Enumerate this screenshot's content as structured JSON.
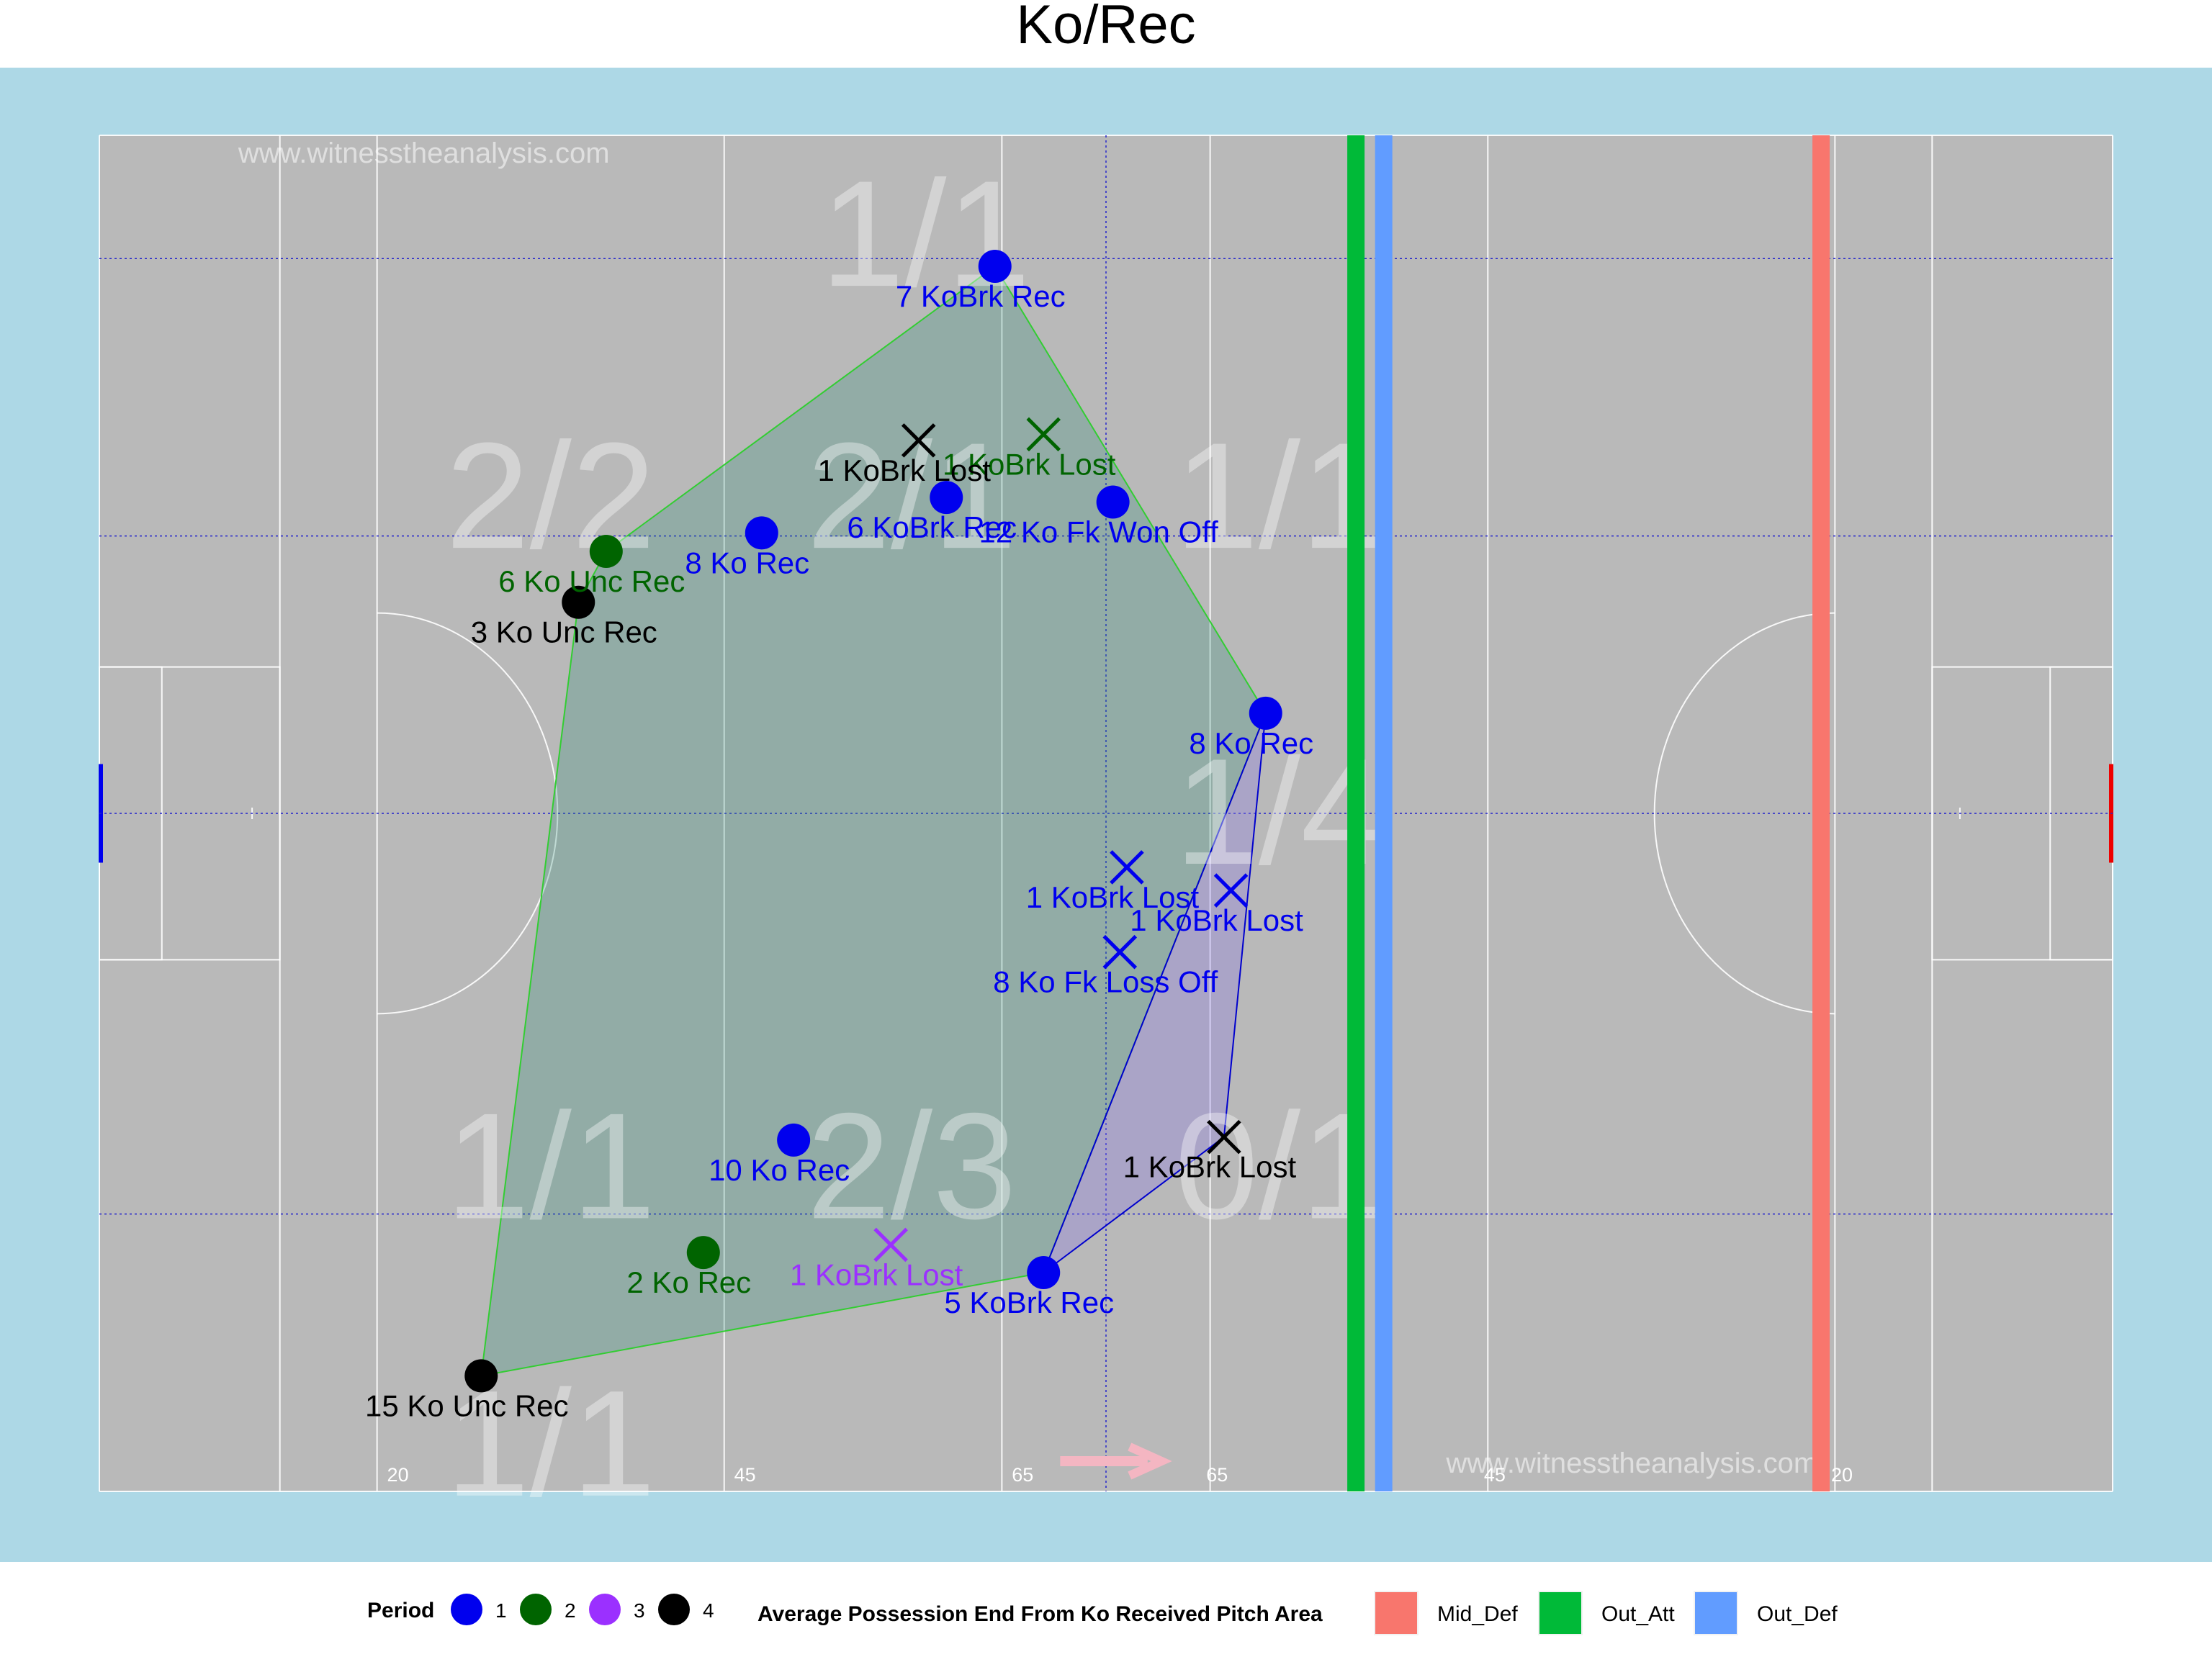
{
  "title": "Ko/Rec",
  "watermark": "www.witnesstheanalysis.com",
  "colors": {
    "outer_bg": "#add8e6",
    "pitch": "#b9b9b9",
    "hull_green": "#32cd32",
    "hull_blue": "#0000cd",
    "period_1": "#0000ee",
    "period_2": "#006400",
    "period_3": "#9b30ff",
    "period_4": "#000000",
    "mid_def": "#f8766d",
    "out_att": "#00ba38",
    "out_def": "#619cff",
    "direction_arrow": "#f4b6c2"
  },
  "chart_data": {
    "type": "scatter",
    "title": "Ko/Rec",
    "xlim": [
      0,
      145
    ],
    "ylim": [
      0,
      88
    ],
    "pitch_markings": {
      "distance_labels": [
        {
          "x": 21.5,
          "label": "20"
        },
        {
          "x": 46.5,
          "label": "45"
        },
        {
          "x": 66.5,
          "label": "65"
        },
        {
          "x": 80.5,
          "label": "65"
        },
        {
          "x": 100.5,
          "label": "45"
        },
        {
          "x": 125.5,
          "label": "20"
        }
      ],
      "grid_x": [
        72.5
      ],
      "grid_y": [
        18,
        44,
        62,
        80
      ]
    },
    "zone_labels": [
      {
        "x": 32.5,
        "y": 64.5,
        "label": "2/2"
      },
      {
        "x": 58.5,
        "y": 64.5,
        "label": "2/1"
      },
      {
        "x": 85,
        "y": 64.5,
        "label": "1/1"
      },
      {
        "x": 59.5,
        "y": 81.5,
        "label": "1/1"
      },
      {
        "x": 85,
        "y": 44,
        "label": "1/4"
      },
      {
        "x": 32.5,
        "y": 21,
        "label": "1/1"
      },
      {
        "x": 58.5,
        "y": 21,
        "label": "2/3"
      },
      {
        "x": 85,
        "y": 21,
        "label": "0/1"
      },
      {
        "x": 32.5,
        "y": 3,
        "label": "1/1"
      }
    ],
    "points": [
      {
        "x": 64.5,
        "y": 79.5,
        "period": 1,
        "shape": "circle",
        "label": "7 KoBrk Rec"
      },
      {
        "x": 61,
        "y": 64.5,
        "period": 1,
        "shape": "circle",
        "label": "6 KoBrk Rec"
      },
      {
        "x": 73,
        "y": 64.2,
        "period": 1,
        "shape": "circle",
        "label": "12 Ko Fk Won Off"
      },
      {
        "x": 47.7,
        "y": 62.2,
        "period": 1,
        "shape": "circle",
        "label": "8 Ko Rec"
      },
      {
        "x": 84,
        "y": 50.5,
        "period": 1,
        "shape": "circle",
        "label": "8 Ko Rec"
      },
      {
        "x": 74,
        "y": 40.5,
        "period": 1,
        "shape": "cross",
        "label": "1 KoBrk Lost"
      },
      {
        "x": 81.5,
        "y": 39,
        "period": 1,
        "shape": "cross",
        "label": "1 KoBrk Lost"
      },
      {
        "x": 73.5,
        "y": 35,
        "period": 1,
        "shape": "cross",
        "label": "8 Ko Fk Loss Off"
      },
      {
        "x": 50,
        "y": 22.8,
        "period": 1,
        "shape": "circle",
        "label": "10 Ko Rec"
      },
      {
        "x": 68,
        "y": 14.2,
        "period": 1,
        "shape": "circle",
        "label": "5 KoBrk Rec"
      },
      {
        "x": 36.5,
        "y": 61,
        "period": 2,
        "shape": "circle",
        "label": "6 Ko Unc Rec"
      },
      {
        "x": 68,
        "y": 68.6,
        "period": 2,
        "shape": "cross",
        "label": "1 KoBrk Lost"
      },
      {
        "x": 43.5,
        "y": 15.5,
        "period": 2,
        "shape": "circle",
        "label": "2 Ko Rec"
      },
      {
        "x": 57,
        "y": 16,
        "period": 3,
        "shape": "cross",
        "label": "1 KoBrk Lost"
      },
      {
        "x": 59,
        "y": 68.2,
        "period": 4,
        "shape": "cross",
        "label": "1 KoBrk Lost"
      },
      {
        "x": 34.5,
        "y": 57.7,
        "period": 4,
        "shape": "circle",
        "label": "3 Ko Unc Rec"
      },
      {
        "x": 81,
        "y": 23,
        "period": 4,
        "shape": "cross",
        "label": "1 KoBrk Lost"
      },
      {
        "x": 27.5,
        "y": 7.5,
        "period": 4,
        "shape": "circle",
        "label": "15 Ko Unc Rec"
      }
    ],
    "hulls": [
      {
        "color": "green",
        "vertices": [
          [
            64.5,
            79.5
          ],
          [
            84,
            50.5
          ],
          [
            68,
            14.2
          ],
          [
            27.5,
            7.5
          ],
          [
            34.5,
            57.7
          ],
          [
            36.5,
            61
          ]
        ]
      },
      {
        "color": "blue",
        "vertices": [
          [
            84,
            50.5
          ],
          [
            81,
            23
          ],
          [
            68,
            14.2
          ]
        ]
      }
    ],
    "vertical_lines": [
      {
        "x": 90.5,
        "category": "Out_Att"
      },
      {
        "x": 92.5,
        "category": "Out_Def"
      },
      {
        "x": 124,
        "category": "Mid_Def"
      }
    ],
    "legend": {
      "period_title": "Period",
      "periods": [
        "1",
        "2",
        "3",
        "4"
      ],
      "area_title": "Average Possession End From Ko Received Pitch Area",
      "areas": [
        "Mid_Def",
        "Out_Att",
        "Out_Def"
      ],
      "placement": "bottom"
    }
  }
}
